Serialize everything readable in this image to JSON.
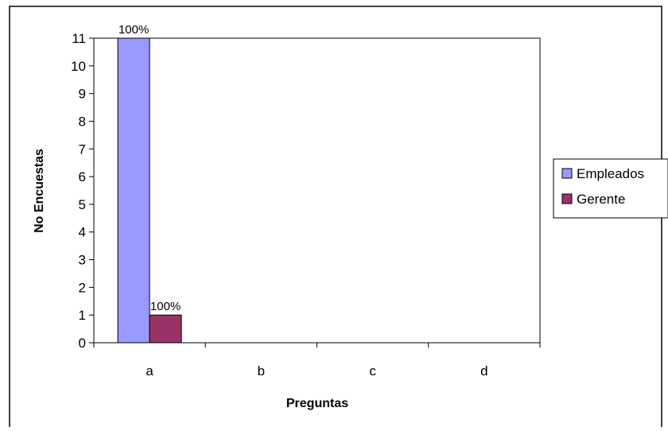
{
  "chart_data": {
    "type": "bar",
    "title": "",
    "xlabel": "Preguntas",
    "ylabel": "No Encuestas",
    "categories": [
      "a",
      "b",
      "c",
      "d"
    ],
    "ylim": [
      0,
      11
    ],
    "yticks": [
      "0",
      "1",
      "2",
      "3",
      "4",
      "5",
      "6",
      "7",
      "8",
      "9",
      "10",
      "11"
    ],
    "grid": false,
    "legend_position": "right",
    "series": [
      {
        "name": "Empleados",
        "color": "#9999ff",
        "values": [
          11,
          0,
          0,
          0
        ],
        "labels": [
          "100%",
          "",
          "",
          ""
        ]
      },
      {
        "name": "Gerente",
        "color": "#993366",
        "values": [
          1,
          0,
          0,
          0
        ],
        "labels": [
          "100%",
          "",
          "",
          ""
        ]
      }
    ]
  }
}
